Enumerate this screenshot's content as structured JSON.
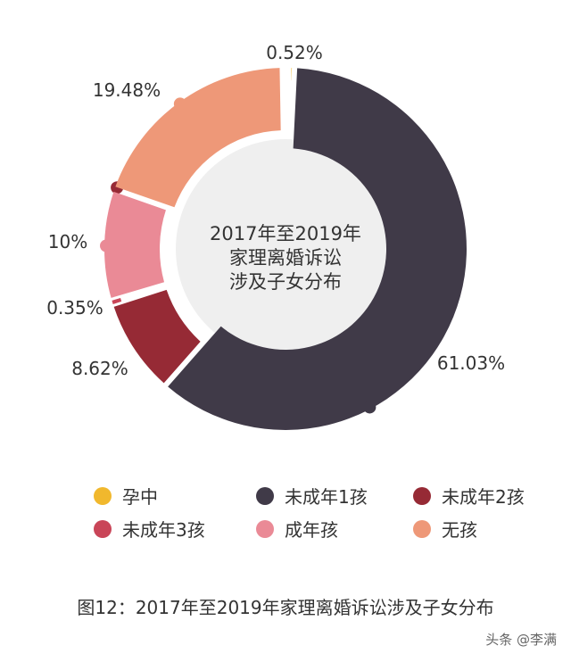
{
  "chart_data": {
    "type": "pie",
    "title": "2017年至2019年家理离婚诉讼涉及子女分布",
    "center_lines": [
      "2017年至2019年",
      "家理离婚诉讼",
      "涉及子女分布"
    ],
    "slices": [
      {
        "name": "孕中",
        "value": 0.52,
        "label": "0.52%",
        "color": "#F1B82D"
      },
      {
        "name": "未成年1孩",
        "value": 61.03,
        "label": "61.03%",
        "color": "#403A48"
      },
      {
        "name": "未成年2孩",
        "value": 8.62,
        "label": "8.62%",
        "color": "#962A35"
      },
      {
        "name": "未成年3孩",
        "value": 0.35,
        "label": "0.35%",
        "color": "#C94558"
      },
      {
        "name": "成年孩",
        "value": 10,
        "label": "10%",
        "color": "#EA8A96"
      },
      {
        "name": "无孩",
        "value": 19.48,
        "label": "19.48%",
        "color": "#EE9878"
      }
    ],
    "legend_position": "bottom"
  },
  "legend": {
    "items": [
      {
        "label": "孕中",
        "color": "#F1B82D"
      },
      {
        "label": "未成年1孩",
        "color": "#403A48"
      },
      {
        "label": "未成年2孩",
        "color": "#962A35"
      },
      {
        "label": "未成年3孩",
        "color": "#C94558"
      },
      {
        "label": "成年孩",
        "color": "#EA8A96"
      },
      {
        "label": "无孩",
        "color": "#EE9878"
      }
    ]
  },
  "caption": "图12：2017年至2019年家理离婚诉讼涉及子女分布",
  "watermark": "头条 @李满",
  "center_fill": "#EFEFEF"
}
